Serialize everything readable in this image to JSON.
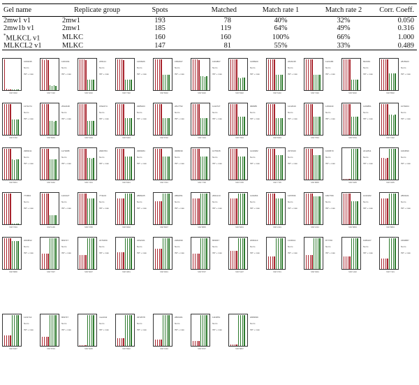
{
  "table": {
    "headers": [
      "Gel name",
      "Replicate group",
      "Spots",
      "Matched",
      "Match rate 1",
      "Match rate 2",
      "Corr. Coeff."
    ],
    "rows": [
      {
        "gel": "2mw1 v1",
        "group": "2mw1",
        "spots": "193",
        "matched": "78",
        "rate1": "40%",
        "rate2": "32%",
        "corr": "0.050"
      },
      {
        "gel": "2mw1b v1",
        "group": "2mw1",
        "spots": "185",
        "matched": "119",
        "rate1": "64%",
        "rate2": "49%",
        "corr": "0.316"
      },
      {
        "gel_prefix": "*",
        "gel": "MLKCL v1",
        "group": "MLKC",
        "spots": "160",
        "matched": "160",
        "rate1": "100%",
        "rate2": "66%",
        "corr": "1.000"
      },
      {
        "gel": "MLKCL2 v1",
        "group": "MLKC",
        "spots": "147",
        "matched": "81",
        "rate1": "55%",
        "rate2": "33%",
        "corr": "0.489"
      }
    ]
  },
  "colors": {
    "red_bar": "#a8232c",
    "green_bar": "#2d7a2d"
  },
  "panel_labels": {
    "line2": "Norm",
    "line3": "INT + max",
    "cap_prefix": "SSP"
  },
  "panels": [
    {
      "id": "1000435",
      "ssp": "0002",
      "red": [
        1.0,
        0.05,
        0.02,
        0.02
      ],
      "green": [
        0.01,
        0.02,
        0.02,
        0.01
      ]
    },
    {
      "id": "1201391",
      "ssp": "7102",
      "red": [
        1.0,
        0.98,
        1.0,
        0.98
      ],
      "green": [
        0.15,
        0.14,
        0.15,
        0.14
      ]
    },
    {
      "id": "235121",
      "ssp": "4002",
      "red": [
        1.0,
        1.0,
        1.0,
        0.98
      ],
      "green": [
        0.35,
        0.33,
        0.34,
        0.33
      ]
    },
    {
      "id": "1263926",
      "ssp": "7302",
      "red": [
        1.0,
        0.99,
        1.0,
        0.98
      ],
      "green": [
        0.35,
        0.34,
        0.34,
        0.35
      ]
    },
    {
      "id": "1582467",
      "ssp": "8002",
      "red": [
        1.0,
        1.0,
        0.99,
        1.0
      ],
      "green": [
        0.5,
        0.49,
        0.5,
        0.5
      ]
    },
    {
      "id": "1304867",
      "ssp": "6202",
      "red": [
        1.0,
        0.99,
        1.0,
        0.98
      ],
      "green": [
        0.45,
        0.45,
        0.44,
        0.45
      ]
    },
    {
      "id": "1208920",
      "ssp": "8302",
      "red": [
        1.0,
        1.0,
        0.99,
        1.0
      ],
      "green": [
        0.4,
        0.39,
        0.4,
        0.4
      ]
    },
    {
      "id": "2646135",
      "ssp": "6402",
      "red": [
        1.0,
        0.99,
        1.0,
        1.0
      ],
      "green": [
        0.5,
        0.49,
        0.5,
        0.5
      ]
    },
    {
      "id": "1121186",
      "ssp": "7402",
      "red": [
        1.0,
        1.0,
        1.0,
        1.0
      ],
      "green": [
        0.5,
        0.5,
        0.49,
        0.5
      ]
    },
    {
      "id": "822349",
      "ssp": "8202",
      "red": [
        1.0,
        1.0,
        0.99,
        1.0
      ],
      "green": [
        0.35,
        0.35,
        0.34,
        0.35
      ]
    },
    {
      "id": "2815923",
      "ssp": "8502",
      "red": [
        1.0,
        1.0,
        1.0,
        1.0
      ],
      "green": [
        0.55,
        0.55,
        0.55,
        0.54
      ]
    },
    {
      "id": "1371074",
      "ssp": "6702",
      "red": [
        1.0,
        0.99,
        1.0,
        1.0
      ],
      "green": [
        0.5,
        0.5,
        0.49,
        0.5
      ]
    },
    {
      "id": "2542348",
      "ssp": "6004",
      "red": [
        1.0,
        1.0,
        0.99,
        1.0
      ],
      "green": [
        0.45,
        0.45,
        0.44,
        0.45
      ]
    },
    {
      "id": "1592474",
      "ssp": "6104",
      "red": [
        1.0,
        0.99,
        1.0,
        1.0
      ],
      "green": [
        0.45,
        0.45,
        0.45,
        0.45
      ]
    },
    {
      "id": "2985203",
      "ssp": "6304",
      "red": [
        1.0,
        1.0,
        0.99,
        1.0
      ],
      "green": [
        0.55,
        0.55,
        0.54,
        0.55
      ]
    },
    {
      "id": "2817752",
      "ssp": "8702",
      "red": [
        1.0,
        1.0,
        1.0,
        0.99
      ],
      "green": [
        0.55,
        0.54,
        0.55,
        0.55
      ]
    },
    {
      "id": "1142727",
      "ssp": "7404",
      "red": [
        1.0,
        0.99,
        1.0,
        1.0
      ],
      "green": [
        0.55,
        0.55,
        0.55,
        0.55
      ]
    },
    {
      "id": "968085",
      "ssp": "7604",
      "red": [
        1.0,
        1.0,
        1.0,
        1.0
      ],
      "green": [
        0.6,
        0.6,
        0.59,
        0.6
      ]
    },
    {
      "id": "1212919",
      "ssp": "8404",
      "red": [
        1.0,
        0.99,
        1.0,
        1.0
      ],
      "green": [
        0.55,
        0.55,
        0.54,
        0.55
      ]
    },
    {
      "id": "1150240",
      "ssp": "7504",
      "red": [
        1.0,
        1.0,
        0.99,
        1.0
      ],
      "green": [
        0.6,
        0.6,
        0.6,
        0.6
      ]
    },
    {
      "id": "1269851",
      "ssp": "8704",
      "red": [
        1.0,
        1.0,
        1.0,
        1.0
      ],
      "green": [
        0.6,
        0.6,
        0.6,
        0.59
      ]
    },
    {
      "id": "1079404",
      "ssp": "7202",
      "red": [
        1.0,
        1.0,
        1.0,
        1.0
      ],
      "green": [
        0.65,
        0.65,
        0.64,
        0.65
      ]
    },
    {
      "id": "2980411",
      "ssp": "8601",
      "red": [
        1.0,
        1.0,
        0.99,
        1.0
      ],
      "green": [
        0.65,
        0.64,
        0.65,
        0.65
      ]
    },
    {
      "id": "1173088",
      "ssp": "6402",
      "red": [
        1.0,
        0.99,
        1.0,
        1.0
      ],
      "green": [
        0.65,
        0.65,
        0.65,
        0.65
      ]
    },
    {
      "id": "2982784",
      "ssp": "7401",
      "red": [
        1.0,
        1.0,
        1.0,
        1.0
      ],
      "green": [
        0.7,
        0.7,
        0.69,
        0.7
      ]
    },
    {
      "id": "2983084",
      "ssp": "8301",
      "red": [
        1.0,
        1.0,
        1.0,
        1.0
      ],
      "green": [
        0.75,
        0.74,
        0.75,
        0.75
      ]
    },
    {
      "id": "3688039",
      "ssp": "7001",
      "red": [
        1.0,
        1.0,
        0.99,
        1.0
      ],
      "green": [
        0.75,
        0.75,
        0.75,
        0.75
      ]
    },
    {
      "id": "1075435",
      "ssp": "7706",
      "red": [
        1.0,
        0.99,
        1.0,
        1.0
      ],
      "green": [
        0.75,
        0.75,
        0.74,
        0.75
      ]
    },
    {
      "id": "1243382",
      "ssp": "6705",
      "red": [
        1.0,
        1.0,
        1.0,
        1.0
      ],
      "green": [
        0.75,
        0.75,
        0.75,
        0.75
      ]
    },
    {
      "id": "2971520",
      "ssp": "7705",
      "red": [
        1.0,
        1.0,
        1.0,
        1.0
      ],
      "green": [
        0.8,
        0.8,
        0.8,
        0.79
      ]
    },
    {
      "id": "1009570",
      "ssp": "8805",
      "red": [
        1.0,
        1.0,
        1.0,
        1.0
      ],
      "green": [
        0.8,
        0.8,
        0.8,
        0.8
      ]
    },
    {
      "id": "2212811",
      "ssp": "6305",
      "red": [
        0.02,
        0.03,
        0.02,
        0.02
      ],
      "green": [
        1.0,
        1.0,
        1.0,
        1.0
      ]
    },
    {
      "id": "1064590",
      "ssp": "0205",
      "red": [
        0.7,
        0.7,
        0.69,
        0.7
      ],
      "green": [
        1.0,
        1.0,
        1.0,
        1.0
      ]
    },
    {
      "id": "773893",
      "ssp": "7004",
      "red": [
        1.0,
        1.0,
        1.0,
        0.99
      ],
      "green": [
        0.02,
        0.02,
        0.02,
        0.02
      ]
    },
    {
      "id": "1101327",
      "ssp": "1106",
      "red": [
        1.0,
        1.0,
        1.0,
        1.0
      ],
      "green": [
        0.3,
        0.3,
        0.3,
        0.3
      ]
    },
    {
      "id": "773103",
      "ssp": "0705",
      "red": [
        1.0,
        1.0,
        1.0,
        1.0
      ],
      "green": [
        0.85,
        0.85,
        0.85,
        0.85
      ]
    },
    {
      "id": "2889225",
      "ssp": "9602",
      "red": [
        0.85,
        0.85,
        0.85,
        0.85
      ],
      "green": [
        1.0,
        1.0,
        1.0,
        1.0
      ]
    },
    {
      "id": "2882051",
      "ssp": "8607",
      "red": [
        0.75,
        0.75,
        0.75,
        0.75
      ],
      "green": [
        1.0,
        1.0,
        1.0,
        1.0
      ]
    },
    {
      "id": "2821213",
      "ssp": "8805",
      "red": [
        0.85,
        0.85,
        0.85,
        0.85
      ],
      "green": [
        1.0,
        1.0,
        1.0,
        1.0
      ]
    },
    {
      "id": "1101804",
      "ssp": "8201",
      "red": [
        0.85,
        0.85,
        0.85,
        0.85
      ],
      "green": [
        1.0,
        1.0,
        1.0,
        1.0
      ]
    },
    {
      "id": "1157836",
      "ssp": "2101",
      "red": [
        1.0,
        1.0,
        1.0,
        1.0
      ],
      "green": [
        0.85,
        0.85,
        0.85,
        0.85
      ]
    },
    {
      "id": "1807780",
      "ssp": "2101",
      "red": [
        1.0,
        1.0,
        1.0,
        1.0
      ],
      "green": [
        0.9,
        0.9,
        0.9,
        0.9
      ]
    },
    {
      "id": "1043182",
      "ssp": "8803",
      "red": [
        1.0,
        1.0,
        1.0,
        1.0
      ],
      "green": [
        0.75,
        0.75,
        0.75,
        0.75
      ]
    },
    {
      "id": "2863221",
      "ssp": "8804",
      "red": [
        0.85,
        0.85,
        0.85,
        0.85
      ],
      "green": [
        1.0,
        1.0,
        1.0,
        1.0
      ]
    },
    {
      "id": "2003812",
      "ssp": "8806",
      "red": [
        1.0,
        1.0,
        1.0,
        1.0
      ],
      "green": [
        0.9,
        0.9,
        0.9,
        0.9
      ]
    },
    {
      "id": "809727",
      "ssp": "7907",
      "red": [
        0.5,
        0.5,
        0.5,
        0.5
      ],
      "green": [
        1.0,
        1.0,
        1.0,
        1.0
      ]
    },
    {
      "id": "2276459",
      "ssp": "8207",
      "red": [
        0.45,
        0.45,
        0.45,
        0.45
      ],
      "green": [
        1.0,
        1.0,
        1.0,
        1.0
      ]
    },
    {
      "id": "2292161",
      "ssp": "4801",
      "red": [
        0.55,
        0.55,
        0.55,
        0.55
      ],
      "green": [
        1.0,
        1.0,
        1.0,
        1.0
      ]
    },
    {
      "id": "2282299",
      "ssp": "9001",
      "red": [
        0.65,
        0.65,
        0.65,
        0.65
      ],
      "green": [
        1.0,
        1.0,
        1.0,
        1.0
      ]
    },
    {
      "id": "809667",
      "ssp": "8707",
      "red": [
        0.5,
        0.5,
        0.5,
        0.5
      ],
      "green": [
        1.0,
        1.0,
        1.0,
        1.0
      ]
    },
    {
      "id": "2096113",
      "ssp": "6107",
      "red": [
        0.6,
        0.6,
        0.6,
        0.6
      ],
      "green": [
        1.0,
        1.0,
        1.0,
        1.0
      ]
    },
    {
      "id": "1134911",
      "ssp": "0701",
      "red": [
        0.4,
        0.4,
        0.4,
        0.4
      ],
      "green": [
        1.0,
        1.0,
        1.0,
        1.0
      ]
    },
    {
      "id": "877700",
      "ssp": "9301",
      "red": [
        0.45,
        0.45,
        0.45,
        0.45
      ],
      "green": [
        1.0,
        1.0,
        1.0,
        1.0
      ]
    },
    {
      "id": "1086167",
      "ssp": "1402",
      "red": [
        0.4,
        0.4,
        0.4,
        0.4
      ],
      "green": [
        1.0,
        1.0,
        1.0,
        1.0
      ]
    },
    {
      "id": "2390887",
      "ssp": "7101",
      "red": [
        0.35,
        0.35,
        0.35,
        0.35
      ],
      "green": [
        1.0,
        1.0,
        1.0,
        1.0
      ]
    },
    {
      "id": "1131714",
      "ssp": "8307",
      "red": [
        0.35,
        0.35,
        0.35,
        0.35
      ],
      "green": [
        1.0,
        1.0,
        1.0,
        1.0
      ]
    },
    {
      "id": "809737",
      "ssp": "8704",
      "red": [
        0.3,
        0.3,
        0.3,
        0.3
      ],
      "green": [
        1.0,
        1.0,
        1.0,
        1.0
      ]
    },
    {
      "id": "mw1042",
      "ssp": "6005",
      "red": [
        0.02,
        0.02,
        0.02,
        0.02
      ],
      "green": [
        1.0,
        1.0,
        1.0,
        1.0
      ]
    },
    {
      "id": "2972578",
      "ssp": "8902",
      "red": [
        0.25,
        0.25,
        0.25,
        0.25
      ],
      "green": [
        1.0,
        1.0,
        1.0,
        1.0
      ]
    },
    {
      "id": "2861901",
      "ssp": "1904",
      "red": [
        0.2,
        0.2,
        0.2,
        0.2
      ],
      "green": [
        1.0,
        1.0,
        1.0,
        1.0
      ]
    },
    {
      "id": "1113851",
      "ssp": "8707",
      "red": [
        0.15,
        0.15,
        0.15,
        0.15
      ],
      "green": [
        1.0,
        1.0,
        1.0,
        1.0
      ]
    },
    {
      "id": "2083099",
      "ssp": "8807",
      "red": [
        0.05,
        0.05,
        0.05,
        0.05
      ],
      "green": [
        1.0,
        1.0,
        1.0,
        1.0
      ]
    },
    {
      "id": "2067777",
      "ssp": "0803",
      "red": [
        0.02,
        0.02,
        0.02,
        0.02
      ],
      "green": [
        1.0,
        1.0,
        1.0,
        1.0
      ]
    }
  ]
}
